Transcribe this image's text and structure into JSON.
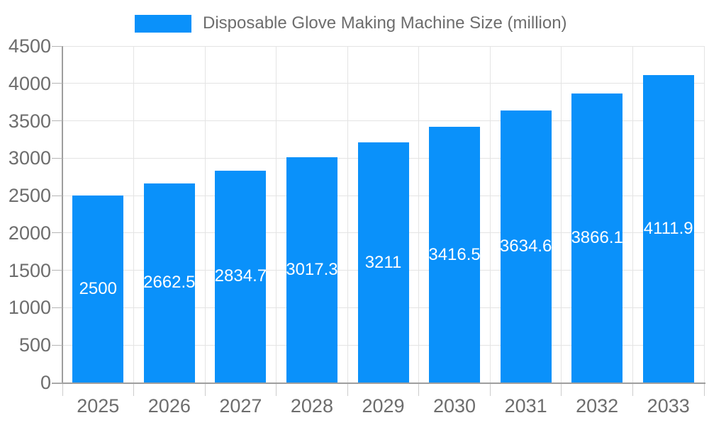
{
  "chart_data": {
    "type": "bar",
    "title": "",
    "legend_label": "Disposable Glove Making Machine Size (million)",
    "legend_position": "top",
    "categories": [
      "2025",
      "2026",
      "2027",
      "2028",
      "2029",
      "2030",
      "2031",
      "2032",
      "2033"
    ],
    "values": [
      2500,
      2662.5,
      2834.7,
      3017.3,
      3211,
      3416.5,
      3634.6,
      3866.1,
      4111.9
    ],
    "value_labels": [
      "2500",
      "2662.5",
      "2834.7",
      "3017.3",
      "3211",
      "3416.5",
      "3634.6",
      "3866.1",
      "4111.9"
    ],
    "xlabel": "",
    "ylabel": "",
    "ylim": [
      0,
      4500
    ],
    "yticks": [
      0,
      500,
      1000,
      1500,
      2000,
      2500,
      3000,
      3500,
      4000,
      4500
    ],
    "grid": true,
    "value_labels_inside_bars": true,
    "colors": {
      "bar": "#0a91fa",
      "axis_line": "#9e9e9e",
      "grid_line": "#e4e4e4",
      "y_tick_mark": "#b5b5b5",
      "x_tick_mark": "#cccccc",
      "tick_label": "#6d6d6d",
      "legend_text": "#6d6d6d",
      "value_label": "#ffffff",
      "background": "#ffffff"
    }
  }
}
